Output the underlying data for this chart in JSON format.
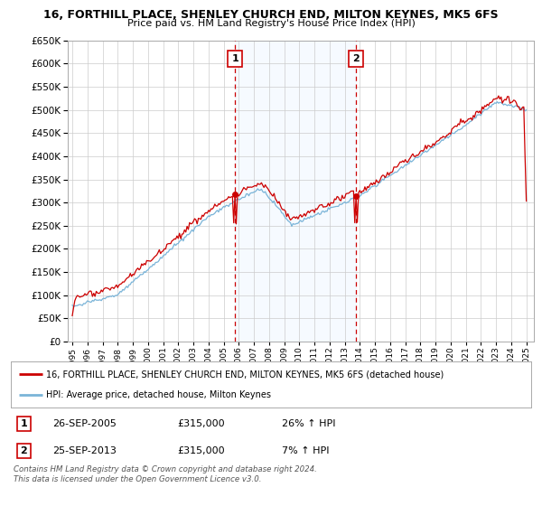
{
  "title_line1": "16, FORTHILL PLACE, SHENLEY CHURCH END, MILTON KEYNES, MK5 6FS",
  "title_line2": "Price paid vs. HM Land Registry's House Price Index (HPI)",
  "sale1_date": "26-SEP-2005",
  "sale1_price": 315000,
  "sale1_hpi_pct": 26,
  "sale2_date": "25-SEP-2013",
  "sale2_price": 315000,
  "sale2_hpi_pct": 7,
  "legend_line1": "16, FORTHILL PLACE, SHENLEY CHURCH END, MILTON KEYNES, MK5 6FS (detached house)",
  "legend_line2": "HPI: Average price, detached house, Milton Keynes",
  "footer": "Contains HM Land Registry data © Crown copyright and database right 2024.\nThis data is licensed under the Open Government Licence v3.0.",
  "hpi_color": "#7ab4d8",
  "price_color": "#cc0000",
  "vline_color": "#cc0000",
  "shade_color": "#ddeeff",
  "grid_color": "#cccccc",
  "bg_color": "#ffffff",
  "ylim_min": 0,
  "ylim_max": 650000,
  "sale1_year": 2005.75,
  "sale2_year": 2013.75
}
